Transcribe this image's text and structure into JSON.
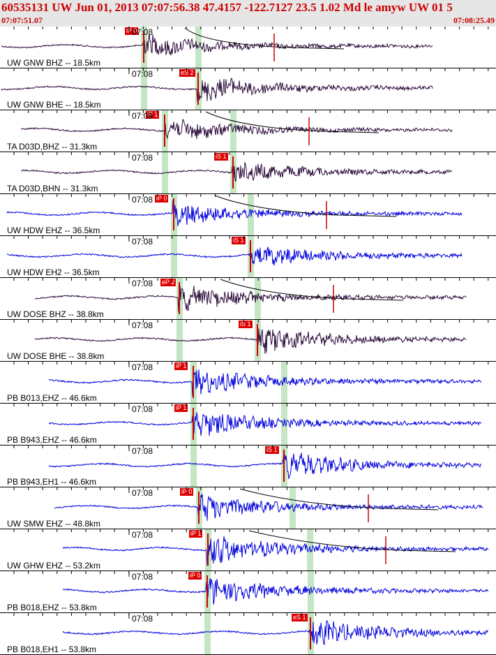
{
  "header": {
    "title": "60535131 UW Jun 01, 2013 07:07:56.38   47.4157 -122.7127 23.5 1.02 Md le amyw UW 01   5",
    "start_time": "07:07:51.07",
    "end_time": "07:08:25.49"
  },
  "colors": {
    "header_bg": "#e6e6e6",
    "header_text": "#cc0000",
    "pick_bg": "#dd0000",
    "band": "#c5e6c4",
    "trace_dark": "#2a0a3a",
    "trace_blue": "#0000dd"
  },
  "traces": [
    {
      "label": "UW GNW BHZ -- 18.5km",
      "time": "07:08",
      "pick": "iP 0",
      "color": "#2a0a3a",
      "p": 205,
      "s": 283,
      "start": 2,
      "end": 620,
      "onset": 205,
      "amp": 14,
      "freq": 0.11,
      "coda": true
    },
    {
      "label": "UW GNW BHE -- 18.5km",
      "time": "07:08",
      "pick": "eS 2",
      "color": "#2a0a3a",
      "p": 205,
      "s": 283,
      "start": 2,
      "end": 620,
      "onset": 283,
      "amp": 16,
      "freq": 0.09,
      "coda": false
    },
    {
      "label": "TA D03D,BHZ -- 31.3km",
      "time": "07:08",
      "pick": "iP 1",
      "color": "#2a0a3a",
      "p": 235,
      "s": 333,
      "start": 30,
      "end": 648,
      "onset": 235,
      "amp": 15,
      "freq": 0.07,
      "coda": true
    },
    {
      "label": "TA D03D,BHN -- 31.3km",
      "time": "07:08",
      "pick": "iS 1",
      "color": "#2a0a3a",
      "p": 235,
      "s": 333,
      "start": 30,
      "end": 648,
      "onset": 333,
      "amp": 12,
      "freq": 0.3,
      "coda": false
    },
    {
      "label": "UW HDW EHZ -- 36.5km",
      "time": "07:08",
      "pick": "iP 0",
      "color": "#0000dd",
      "p": 248,
      "s": 358,
      "start": 10,
      "end": 662,
      "onset": 248,
      "amp": 14,
      "freq": 0.5,
      "coda": true
    },
    {
      "label": "UW HDW EH2 -- 36.5km",
      "time": "07:08",
      "pick": "iS 1",
      "color": "#0000dd",
      "p": 248,
      "s": 358,
      "start": 10,
      "end": 662,
      "onset": 358,
      "amp": 14,
      "freq": 0.5,
      "coda": false
    },
    {
      "label": "UW DOSE BHZ -- 38.8km",
      "time": "07:08",
      "pick": "eP 2",
      "color": "#2a0a3a",
      "p": 256,
      "s": 368,
      "start": 50,
      "end": 668,
      "onset": 256,
      "amp": 16,
      "freq": 0.45,
      "coda": true
    },
    {
      "label": "UW DOSE BHE -- 38.8km",
      "time": "07:08",
      "pick": "iS 1",
      "color": "#2a0a3a",
      "p": 256,
      "s": 368,
      "start": 50,
      "end": 668,
      "onset": 368,
      "amp": 16,
      "freq": 0.45,
      "coda": false
    },
    {
      "label": "PB B013,EHZ -- 46.6km",
      "time": "07:08",
      "pick": "iP 1",
      "color": "#0000dd",
      "p": 276,
      "s": 406,
      "start": 70,
      "end": 690,
      "onset": 276,
      "amp": 16,
      "freq": 0.55,
      "coda": false
    },
    {
      "label": "PB B943,EHZ -- 46.6km",
      "time": "07:08",
      "pick": "iP 1",
      "color": "#0000dd",
      "p": 276,
      "s": 406,
      "start": 70,
      "end": 690,
      "onset": 276,
      "amp": 16,
      "freq": 0.55,
      "coda": false
    },
    {
      "label": "PB B943,EH1 -- 46.6km",
      "time": "07:08",
      "pick": "iS 1",
      "color": "#0000dd",
      "p": 276,
      "s": 406,
      "start": 70,
      "end": 690,
      "onset": 406,
      "amp": 16,
      "freq": 0.55,
      "coda": false
    },
    {
      "label": "UW SMW EHZ -- 48.8km",
      "time": "07:08",
      "pick": "iP 0",
      "color": "#0000dd",
      "p": 284,
      "s": 418,
      "start": 78,
      "end": 692,
      "onset": 284,
      "amp": 17,
      "freq": 0.6,
      "coda": true
    },
    {
      "label": "UW GHW EHZ -- 53.2km",
      "time": "07:08",
      "pick": "iP 1",
      "color": "#0000dd",
      "p": 297,
      "s": 443,
      "start": 90,
      "end": 700,
      "onset": 297,
      "amp": 18,
      "freq": 0.6,
      "coda": true
    },
    {
      "label": "PB B018,EHZ -- 53.8km",
      "time": "07:08",
      "pick": "iP 0",
      "color": "#0000dd",
      "p": 296,
      "s": 444,
      "start": 90,
      "end": 700,
      "onset": 296,
      "amp": 17,
      "freq": 0.6,
      "coda": false
    },
    {
      "label": "PB B018,EH1 -- 53.8km",
      "time": "07:08",
      "pick": "eS 1",
      "color": "#0000dd",
      "p": 296,
      "s": 444,
      "start": 90,
      "end": 700,
      "onset": 444,
      "amp": 17,
      "freq": 0.6,
      "coda": false
    }
  ]
}
